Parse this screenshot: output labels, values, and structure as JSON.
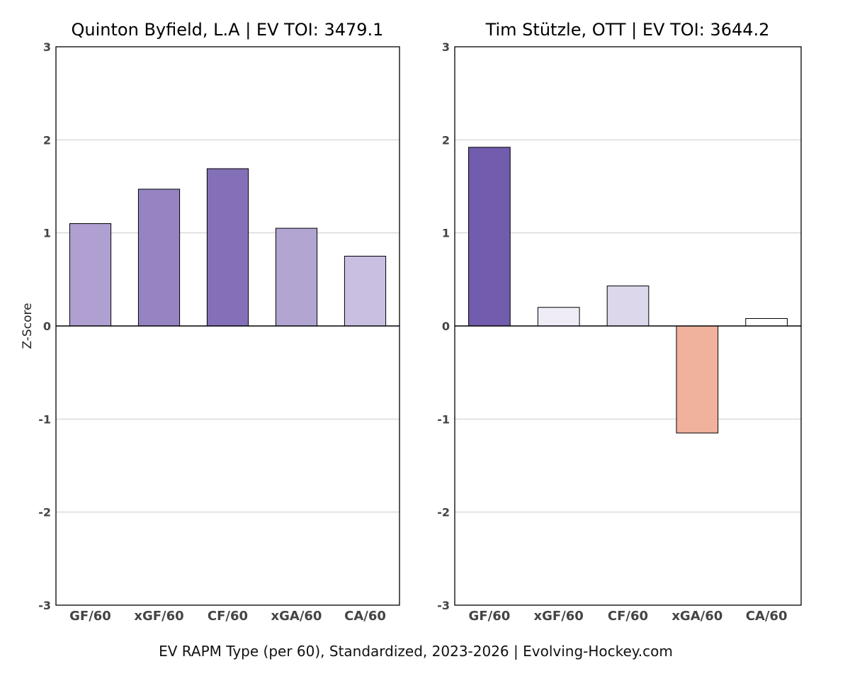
{
  "chart_data": [
    {
      "type": "bar",
      "title": "Quinton Byfield, L.A  |  EV TOI: 3479.1",
      "ylabel": "Z-Score",
      "ylim": [
        -3,
        3
      ],
      "yticks": [
        3,
        2,
        1,
        0,
        -1,
        -2,
        -3
      ],
      "grid": "horizontal",
      "categories": [
        "GF/60",
        "xGF/60",
        "CF/60",
        "xGA/60",
        "CA/60"
      ],
      "values": [
        1.1,
        1.47,
        1.69,
        1.05,
        0.75
      ],
      "colors": [
        "#b09fd1",
        "#9683c2",
        "#8470b8",
        "#b2a5d2",
        "#c9bfe0"
      ]
    },
    {
      "type": "bar",
      "title": "Tim Stützle, OTT  |  EV TOI: 3644.2",
      "ylabel": "",
      "ylim": [
        -3,
        3
      ],
      "yticks": [
        3,
        2,
        1,
        0,
        -1,
        -2,
        -3
      ],
      "grid": "horizontal",
      "categories": [
        "GF/60",
        "xGF/60",
        "CF/60",
        "xGA/60",
        "CA/60"
      ],
      "values": [
        1.92,
        0.2,
        0.43,
        -1.15,
        0.08
      ],
      "colors": [
        "#725cad",
        "#efecf6",
        "#ddd7ec",
        "#f0b19d",
        "#ffffff"
      ]
    }
  ],
  "footer": "EV RAPM Type (per 60), Standardized, 2023-2026    |    Evolving-Hockey.com"
}
